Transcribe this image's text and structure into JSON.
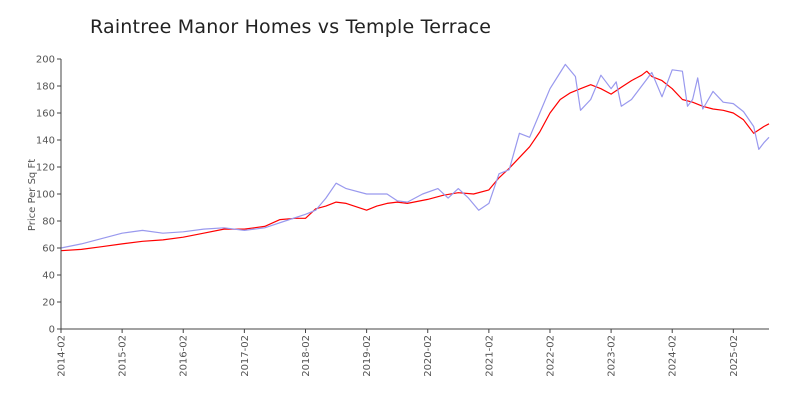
{
  "chart_data": {
    "type": "line",
    "title": "Raintree Manor Homes vs Temple Terrace",
    "xlabel": "",
    "ylabel": "Price Per Sq Ft",
    "ylim": [
      0,
      200
    ],
    "yticks": [
      0,
      20,
      40,
      60,
      80,
      100,
      120,
      140,
      160,
      180,
      200
    ],
    "xticks": [
      "2014-02",
      "2015-02",
      "2016-02",
      "2017-02",
      "2018-02",
      "2019-02",
      "2020-02",
      "2021-02",
      "2022-02",
      "2023-02",
      "2024-02",
      "2025-02"
    ],
    "x_start": "2014-02",
    "x_end": "2025-09",
    "grid": false,
    "legend": "none",
    "series": [
      {
        "color": "#ff0000",
        "points": [
          [
            "2014-02",
            58
          ],
          [
            "2014-06",
            59
          ],
          [
            "2014-10",
            61
          ],
          [
            "2015-02",
            63
          ],
          [
            "2015-06",
            65
          ],
          [
            "2015-10",
            66
          ],
          [
            "2016-02",
            68
          ],
          [
            "2016-06",
            71
          ],
          [
            "2016-10",
            74
          ],
          [
            "2017-02",
            74
          ],
          [
            "2017-06",
            76
          ],
          [
            "2017-09",
            81
          ],
          [
            "2017-12",
            82
          ],
          [
            "2018-02",
            82
          ],
          [
            "2018-04",
            89
          ],
          [
            "2018-06",
            91
          ],
          [
            "2018-08",
            94
          ],
          [
            "2018-10",
            93
          ],
          [
            "2019-02",
            88
          ],
          [
            "2019-04",
            91
          ],
          [
            "2019-06",
            93
          ],
          [
            "2019-08",
            94
          ],
          [
            "2019-10",
            93
          ],
          [
            "2020-02",
            96
          ],
          [
            "2020-05",
            99
          ],
          [
            "2020-08",
            101
          ],
          [
            "2020-11",
            100
          ],
          [
            "2021-02",
            103
          ],
          [
            "2021-04",
            112
          ],
          [
            "2021-06",
            119
          ],
          [
            "2021-08",
            127
          ],
          [
            "2021-10",
            135
          ],
          [
            "2021-12",
            146
          ],
          [
            "2022-02",
            160
          ],
          [
            "2022-04",
            170
          ],
          [
            "2022-06",
            175
          ],
          [
            "2022-08",
            178
          ],
          [
            "2022-10",
            181
          ],
          [
            "2022-12",
            178
          ],
          [
            "2023-02",
            174
          ],
          [
            "2023-04",
            179
          ],
          [
            "2023-06",
            184
          ],
          [
            "2023-08",
            188
          ],
          [
            "2023-09",
            191
          ],
          [
            "2023-10",
            187
          ],
          [
            "2023-12",
            184
          ],
          [
            "2024-02",
            178
          ],
          [
            "2024-04",
            170
          ],
          [
            "2024-06",
            168
          ],
          [
            "2024-08",
            165
          ],
          [
            "2024-10",
            163
          ],
          [
            "2024-12",
            162
          ],
          [
            "2025-02",
            160
          ],
          [
            "2025-04",
            155
          ],
          [
            "2025-06",
            145
          ],
          [
            "2025-08",
            150
          ],
          [
            "2025-09",
            152
          ]
        ]
      },
      {
        "color": "#9999ee",
        "points": [
          [
            "2014-02",
            60
          ],
          [
            "2014-06",
            63
          ],
          [
            "2014-10",
            67
          ],
          [
            "2015-02",
            71
          ],
          [
            "2015-06",
            73
          ],
          [
            "2015-10",
            71
          ],
          [
            "2016-02",
            72
          ],
          [
            "2016-06",
            74
          ],
          [
            "2016-10",
            75
          ],
          [
            "2017-02",
            73
          ],
          [
            "2017-06",
            75
          ],
          [
            "2017-10",
            80
          ],
          [
            "2018-02",
            85
          ],
          [
            "2018-04",
            88
          ],
          [
            "2018-06",
            97
          ],
          [
            "2018-08",
            108
          ],
          [
            "2018-10",
            104
          ],
          [
            "2019-02",
            100
          ],
          [
            "2019-06",
            100
          ],
          [
            "2019-08",
            95
          ],
          [
            "2019-10",
            94
          ],
          [
            "2020-01",
            100
          ],
          [
            "2020-04",
            104
          ],
          [
            "2020-06",
            97
          ],
          [
            "2020-08",
            104
          ],
          [
            "2020-10",
            97
          ],
          [
            "2020-12",
            88
          ],
          [
            "2021-02",
            93
          ],
          [
            "2021-04",
            115
          ],
          [
            "2021-06",
            118
          ],
          [
            "2021-08",
            145
          ],
          [
            "2021-10",
            142
          ],
          [
            "2021-12",
            160
          ],
          [
            "2022-02",
            178
          ],
          [
            "2022-04",
            190
          ],
          [
            "2022-05",
            196
          ],
          [
            "2022-07",
            187
          ],
          [
            "2022-08",
            162
          ],
          [
            "2022-10",
            170
          ],
          [
            "2022-12",
            188
          ],
          [
            "2023-02",
            178
          ],
          [
            "2023-03",
            183
          ],
          [
            "2023-04",
            165
          ],
          [
            "2023-06",
            170
          ],
          [
            "2023-08",
            180
          ],
          [
            "2023-09",
            185
          ],
          [
            "2023-10",
            190
          ],
          [
            "2023-12",
            172
          ],
          [
            "2024-02",
            192
          ],
          [
            "2024-04",
            191
          ],
          [
            "2024-05",
            165
          ],
          [
            "2024-06",
            170
          ],
          [
            "2024-07",
            186
          ],
          [
            "2024-08",
            163
          ],
          [
            "2024-10",
            176
          ],
          [
            "2024-12",
            168
          ],
          [
            "2025-02",
            167
          ],
          [
            "2025-04",
            161
          ],
          [
            "2025-06",
            150
          ],
          [
            "2025-07",
            133
          ],
          [
            "2025-08",
            138
          ],
          [
            "2025-09",
            142
          ]
        ]
      }
    ]
  }
}
